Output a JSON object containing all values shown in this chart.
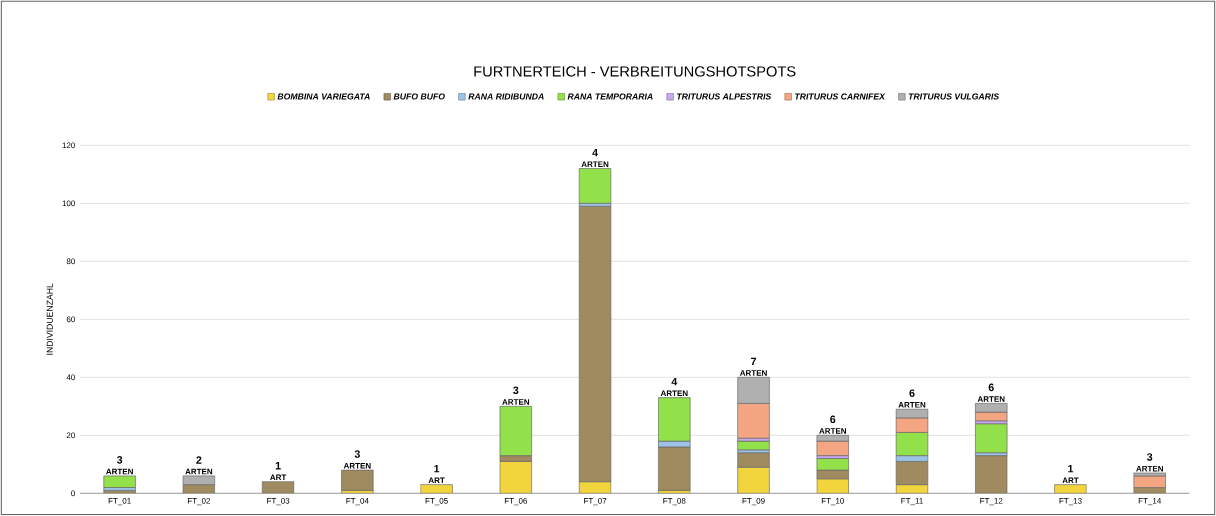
{
  "chart_data": {
    "type": "bar",
    "stacked": true,
    "title": "FURTNERTEICH - VERBREITUNGSHOTSPOTS",
    "ylabel": "INDIVIDUENZAHL",
    "categories": [
      "FT_01",
      "FT_02",
      "FT_03",
      "FT_04",
      "FT_05",
      "FT_06",
      "FT_07",
      "FT_08",
      "FT_09",
      "FT_10",
      "FT_11",
      "FT_12",
      "FT_13",
      "FT_14"
    ],
    "series": [
      {
        "name": "BOMBINA VARIEGATA",
        "color": "#f2d43c",
        "values": [
          null,
          null,
          null,
          1,
          3,
          11,
          4,
          1,
          9,
          5,
          3,
          null,
          3,
          null
        ]
      },
      {
        "name": "BUFO BUFO",
        "color": "#a08a60",
        "values": [
          1,
          3,
          4,
          7,
          null,
          2,
          95,
          15,
          5,
          3,
          8,
          13,
          null,
          2
        ]
      },
      {
        "name": "RANA RIDIBUNDA",
        "color": "#9dc3e6",
        "values": [
          1,
          null,
          null,
          null,
          null,
          null,
          1,
          2,
          1,
          null,
          2,
          1,
          null,
          null
        ]
      },
      {
        "name": "RANA TEMPORARIA",
        "color": "#92e04a",
        "values": [
          4,
          null,
          null,
          null,
          null,
          17,
          12,
          15,
          3,
          4,
          8,
          10,
          null,
          null
        ]
      },
      {
        "name": "TRITURUS ALPESTRIS",
        "color": "#c9a8f0",
        "values": [
          null,
          null,
          null,
          null,
          null,
          null,
          null,
          null,
          1,
          1,
          null,
          1,
          null,
          null
        ]
      },
      {
        "name": "TRITURUS CARNIFEX",
        "color": "#f4a582",
        "values": [
          null,
          null,
          null,
          null,
          null,
          null,
          null,
          null,
          12,
          5,
          5,
          3,
          null,
          4
        ]
      },
      {
        "name": "TRITURUS VULGARIS",
        "color": "#b0b0b0",
        "values": [
          null,
          3,
          null,
          null,
          null,
          null,
          null,
          null,
          9,
          2,
          3,
          3,
          null,
          1
        ]
      }
    ],
    "ylim": [
      0,
      120
    ],
    "yticks": [
      0,
      20,
      40,
      60,
      80,
      100,
      120
    ],
    "grid": "y",
    "legend": "top",
    "annotations": [
      {
        "text": "ARTEN",
        "x": "FT_01",
        "y": 6
      },
      {
        "text": "3",
        "x": "FT_01",
        "y": 6
      },
      {
        "text": "ARTEN",
        "x": "FT_02",
        "y": 6
      },
      {
        "text": "2",
        "x": "FT_02",
        "y": 6
      },
      {
        "text": "ART",
        "x": "FT_03",
        "y": 4
      },
      {
        "text": "1",
        "x": "FT_03",
        "y": 4
      },
      {
        "text": "ARTEN",
        "x": "FT_04",
        "y": 8
      },
      {
        "text": "3",
        "x": "FT_04",
        "y": 8
      },
      {
        "text": "ART",
        "x": "FT_05",
        "y": 3
      },
      {
        "text": "1",
        "x": "FT_05",
        "y": 3
      },
      {
        "text": "ARTEN",
        "x": "FT_06",
        "y": 30
      },
      {
        "text": "3",
        "x": "FT_06",
        "y": 30
      },
      {
        "text": "ARTEN",
        "x": "FT_07",
        "y": 112
      },
      {
        "text": "4",
        "x": "FT_07",
        "y": 112
      },
      {
        "text": "ARTEN",
        "x": "FT_08",
        "y": 33
      },
      {
        "text": "4",
        "x": "FT_08",
        "y": 33
      },
      {
        "text": "ARTEN",
        "x": "FT_09",
        "y": 40
      },
      {
        "text": "7",
        "x": "FT_09",
        "y": 40
      },
      {
        "text": "ARTEN",
        "x": "FT_10",
        "y": 20
      },
      {
        "text": "6",
        "x": "FT_10",
        "y": 20
      },
      {
        "text": "ARTEN",
        "x": "FT_11",
        "y": 29
      },
      {
        "text": "6",
        "x": "FT_11",
        "y": 29
      },
      {
        "text": "ARTEN",
        "x": "FT_12",
        "y": 31
      },
      {
        "text": "6",
        "x": "FT_12",
        "y": 31
      },
      {
        "text": "ART",
        "x": "FT_13",
        "y": 3
      },
      {
        "text": "1",
        "x": "FT_13",
        "y": 3
      },
      {
        "text": "ARTEN",
        "x": "FT_14",
        "y": 7
      },
      {
        "text": "3",
        "x": "FT_14",
        "y": 7
      }
    ]
  }
}
